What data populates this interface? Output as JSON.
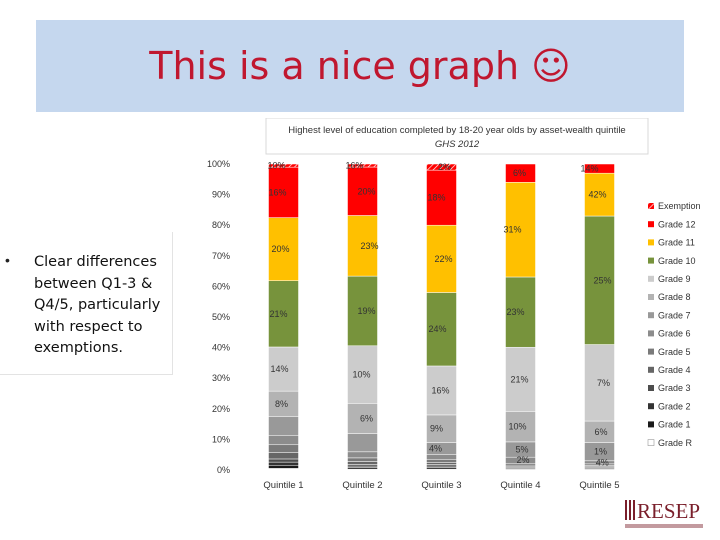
{
  "slide": {
    "title": "This is a nice graph ☺",
    "bullets": [
      "Clear differences between Q1-3 & Q4/5, particularly with respect to exemptions."
    ]
  },
  "logo": {
    "text": "RESEP",
    "color": "#7a1f2b"
  },
  "chart_data": {
    "type": "bar",
    "stacked": true,
    "title": "Highest level of education completed by 18-20 year olds by asset-wealth quintile",
    "subtitle": "GHS 2012",
    "xlabel": "",
    "ylabel": "",
    "ylim": [
      0,
      100
    ],
    "yticks": [
      "0%",
      "10%",
      "20%",
      "30%",
      "40%",
      "50%",
      "60%",
      "70%",
      "80%",
      "90%",
      "100%"
    ],
    "grid": false,
    "legend": "right",
    "categories": [
      "Quintile 1",
      "Quintile 2",
      "Quintile 3",
      "Quintile 4",
      "Quintile 5"
    ],
    "series": [
      {
        "name": "Grade R",
        "color": "#ffffff",
        "values": [
          0.5,
          0.3,
          0.3,
          0.2,
          0.2
        ]
      },
      {
        "name": "Grade 1",
        "color": "#1a1a1a",
        "values": [
          1,
          0.5,
          0.5,
          0.3,
          0.3
        ]
      },
      {
        "name": "Grade 2",
        "color": "#333333",
        "values": [
          1,
          0.5,
          0.5,
          0.3,
          0.3
        ]
      },
      {
        "name": "Grade 3",
        "color": "#4d4d4d",
        "values": [
          1,
          0.5,
          0.5,
          0.4,
          0.3
        ]
      },
      {
        "name": "Grade 4",
        "color": "#666666",
        "values": [
          2,
          1,
          0.7,
          0.4,
          0.4
        ]
      },
      {
        "name": "Grade 5",
        "color": "#7a7a7a",
        "values": [
          2.5,
          1.2,
          1,
          0.6,
          0.5
        ]
      },
      {
        "name": "Grade 6",
        "color": "#8c8c8c",
        "values": [
          3,
          2,
          1.5,
          2,
          1
        ]
      },
      {
        "name": "Grade 7",
        "color": "#999999",
        "values": [
          6,
          6,
          4,
          5,
          6
        ]
      },
      {
        "name": "Grade 8",
        "color": "#b3b3b3",
        "values": [
          8,
          10,
          9,
          10,
          7
        ]
      },
      {
        "name": "Grade 9",
        "color": "#cccccc",
        "values": [
          14,
          19,
          16,
          21,
          25
        ]
      },
      {
        "name": "Grade 10",
        "color": "#77933c",
        "values": [
          21,
          23,
          24,
          23,
          42
        ]
      },
      {
        "name": "Grade 11",
        "color": "#ffc000",
        "values": [
          20,
          20,
          22,
          31,
          14
        ]
      },
      {
        "name": "Grade 12",
        "color": "#ff0000",
        "values": [
          16,
          16,
          18,
          6,
          3
        ]
      },
      {
        "name": "Exemption",
        "color": "#ff0000",
        "values": [
          1,
          1,
          2,
          0,
          0
        ],
        "hatched": true
      }
    ],
    "data_labels": [
      [
        [
          -2,
          "8%"
        ],
        [
          -4,
          "14%"
        ],
        [
          -5,
          "21%"
        ],
        [
          -3,
          "20%"
        ],
        [
          -6,
          "16%"
        ],
        [
          -7,
          "10%"
        ]
      ],
      [
        [
          4,
          "6%"
        ],
        [
          -1,
          "10%"
        ],
        [
          4,
          "19%"
        ],
        [
          7,
          "23%"
        ],
        [
          4,
          "20%"
        ],
        [
          -8,
          "16%"
        ]
      ],
      [
        [
          -6,
          "4%"
        ],
        [
          -5,
          "9%"
        ],
        [
          -1,
          "16%"
        ],
        [
          -4,
          "24%"
        ],
        [
          2,
          "22%"
        ],
        [
          -5,
          "18%"
        ],
        [
          3,
          "2%"
        ]
      ],
      [
        [
          2.5,
          "2%"
        ],
        [
          1.5,
          "5%"
        ],
        [
          -3,
          "10%"
        ],
        [
          -1,
          "21%"
        ],
        [
          -5,
          "23%"
        ],
        [
          -8,
          "31%"
        ],
        [
          -1,
          "6%"
        ]
      ],
      [
        [
          2.8,
          "4%"
        ],
        [
          1,
          "1%"
        ],
        [
          1.5,
          "6%"
        ],
        [
          4,
          "7%"
        ],
        [
          3,
          "25%"
        ],
        [
          -2,
          "42%"
        ],
        [
          -10,
          "14%"
        ]
      ]
    ]
  }
}
